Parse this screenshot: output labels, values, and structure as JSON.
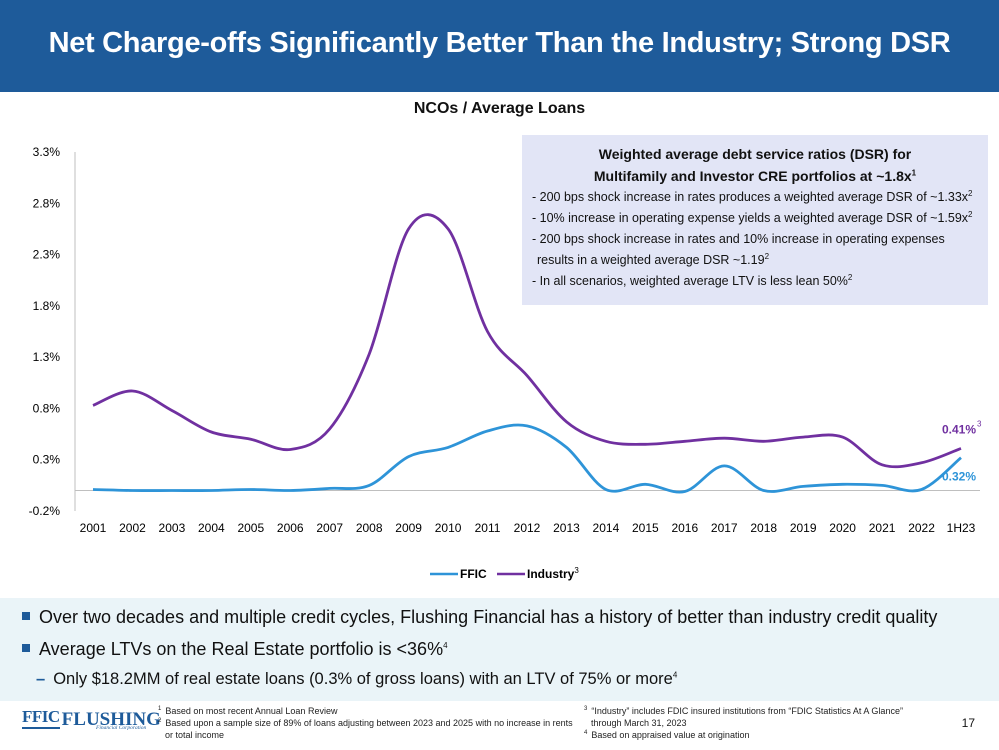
{
  "header": {
    "title": "Net Charge-offs Significantly Better Than the Industry; Strong DSR"
  },
  "callout": {
    "title_line1": "Weighted average debt service ratios (DSR) for",
    "title_line2": "Multifamily and  Investor CRE portfolios at ~1.8x",
    "title_sup": "1",
    "items": [
      {
        "text": "- 200 bps shock increase in rates produces a weighted average DSR of ~1.33x",
        "sup": "2"
      },
      {
        "text": "- 10% increase in operating expense yields a weighted average DSR of ~1.59x",
        "sup": "2"
      },
      {
        "text": "- 200 bps shock increase in rates and 10% increase in operating expenses",
        "sup": ""
      },
      {
        "text": "  results in a weighted average DSR ~1.19",
        "sup": "2"
      },
      {
        "text": "- In all scenarios, weighted average LTV is less lean 50%",
        "sup": "2"
      }
    ]
  },
  "chart_data": {
    "type": "line",
    "title": "NCOs / Average Loans",
    "categories": [
      "2001",
      "2002",
      "2003",
      "2004",
      "2005",
      "2006",
      "2007",
      "2008",
      "2009",
      "2010",
      "2011",
      "2012",
      "2013",
      "2014",
      "2015",
      "2016",
      "2017",
      "2018",
      "2019",
      "2020",
      "2021",
      "2022",
      "1H23"
    ],
    "y_ticks": [
      "-0.2%",
      "0.3%",
      "0.8%",
      "1.3%",
      "1.8%",
      "2.3%",
      "2.8%",
      "3.3%"
    ],
    "ylim": [
      -0.2,
      3.3
    ],
    "series": [
      {
        "name": "FFIC",
        "color": "#2e94d8",
        "values": [
          0.01,
          0.0,
          0.0,
          0.0,
          0.01,
          0.0,
          0.02,
          0.05,
          0.33,
          0.42,
          0.58,
          0.63,
          0.42,
          0.01,
          0.06,
          -0.01,
          0.24,
          0.0,
          0.04,
          0.06,
          0.05,
          0.01,
          0.32
        ]
      },
      {
        "name": "Industry",
        "legend_sup": "3",
        "color": "#7030a0",
        "values": [
          0.83,
          0.97,
          0.78,
          0.57,
          0.5,
          0.4,
          0.6,
          1.33,
          2.55,
          2.55,
          1.55,
          1.12,
          0.67,
          0.48,
          0.45,
          0.48,
          0.51,
          0.48,
          0.52,
          0.52,
          0.25,
          0.27,
          0.41
        ]
      }
    ],
    "end_labels": {
      "ffic": "0.32%",
      "industry": "0.41%",
      "industry_sup": "3"
    }
  },
  "bullets": {
    "items": [
      {
        "text": "Over two decades and multiple credit cycles, Flushing Financial has a history of better than industry credit quality",
        "sup": ""
      },
      {
        "text": "Average LTVs on the Real Estate portfolio is <36%",
        "sup": "4"
      }
    ],
    "sub_item": {
      "text": "Only $18.2MM of real estate loans (0.3% of gross loans) with an LTV of 75% or more",
      "sup": "4"
    }
  },
  "footer": {
    "logo_ffic": "FFIC",
    "logo_name": "FLUSHING",
    "logo_sub": "Financial Corporation",
    "notes_left": [
      {
        "num": "1",
        "text": "Based on most recent Annual Loan Review"
      },
      {
        "num": "2",
        "text": "Based upon a sample size of 89% of loans adjusting between 2023 and 2025 with no increase in rents"
      },
      {
        "num": "",
        "text": "or total income"
      }
    ],
    "notes_right": [
      {
        "num": "3",
        "text": "“Industry” includes FDIC insured institutions from “FDIC Statistics At A Glance”"
      },
      {
        "num": "",
        "text": "through March 31, 2023"
      },
      {
        "num": "4",
        "text": "Based on appraised value at origination"
      }
    ],
    "page_number": "17"
  }
}
